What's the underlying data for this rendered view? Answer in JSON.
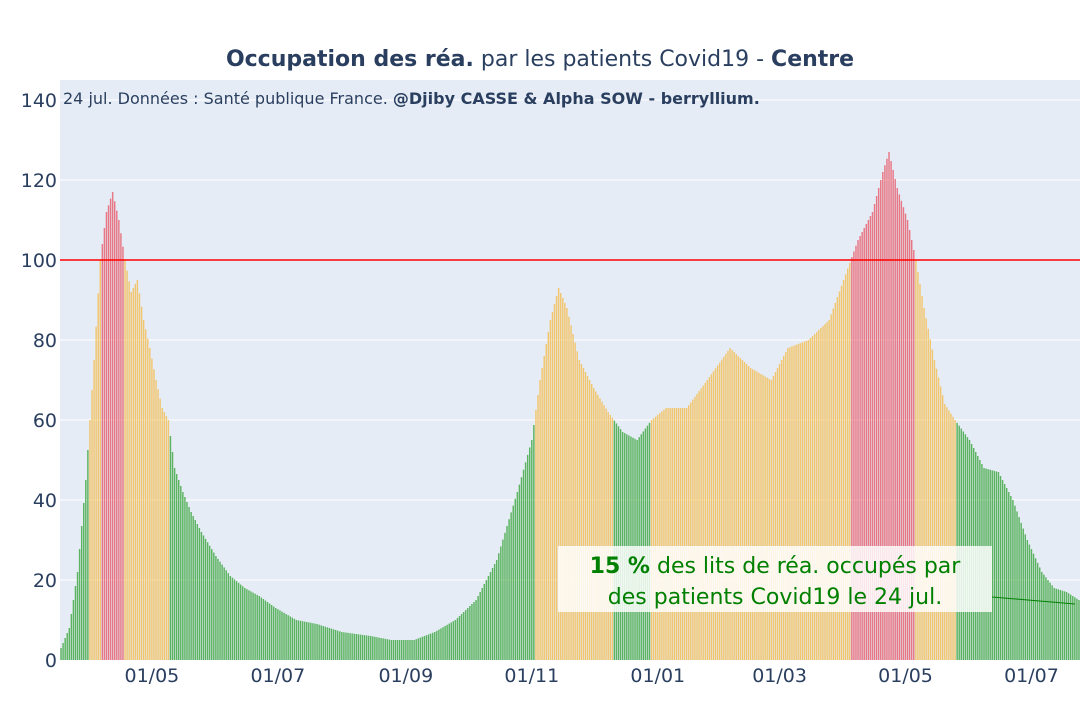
{
  "chart_data": {
    "type": "bar",
    "title_bold_1": "Occupation des réa.",
    "title_regular": " par les patients Covid19 - ",
    "title_bold_2": "Centre",
    "source_regular": "24 jul. Données : Santé publique France. ",
    "source_bold": "@Djiby CASSE & Alpha SOW - berryllium.",
    "ylim": [
      0,
      145
    ],
    "yticks": [
      0,
      20,
      40,
      60,
      80,
      100,
      120,
      140
    ],
    "xticks": [
      {
        "date": "2020-05-01",
        "label": "01/05"
      },
      {
        "date": "2020-07-01",
        "label": "01/07"
      },
      {
        "date": "2020-09-01",
        "label": "01/09"
      },
      {
        "date": "2020-11-01",
        "label": "01/11"
      },
      {
        "date": "2021-01-01",
        "label": "01/01"
      },
      {
        "date": "2021-03-01",
        "label": "01/03"
      },
      {
        "date": "2021-05-01",
        "label": "01/05"
      },
      {
        "date": "2021-07-01",
        "label": "01/07"
      }
    ],
    "x_start": "2020-03-18",
    "x_end": "2021-07-24",
    "threshold": 100,
    "colors": {
      "green": "#2ca02c",
      "orange": "#f5b942",
      "red": "#e8505f",
      "threshold_line": "#ff0000",
      "plot_bg": "#e5ecf6"
    },
    "color_rule": "green below 60, orange 60-100, red above 100",
    "series_points": [
      [
        "2020-03-18",
        3
      ],
      [
        "2020-03-22",
        8
      ],
      [
        "2020-03-26",
        22
      ],
      [
        "2020-03-30",
        45
      ],
      [
        "2020-04-03",
        75
      ],
      [
        "2020-04-06",
        100
      ],
      [
        "2020-04-09",
        112
      ],
      [
        "2020-04-12",
        117
      ],
      [
        "2020-04-15",
        110
      ],
      [
        "2020-04-18",
        100
      ],
      [
        "2020-04-21",
        92
      ],
      [
        "2020-04-24",
        95
      ],
      [
        "2020-04-27",
        85
      ],
      [
        "2020-04-30",
        78
      ],
      [
        "2020-05-03",
        70
      ],
      [
        "2020-05-06",
        63
      ],
      [
        "2020-05-09",
        60
      ],
      [
        "2020-05-12",
        48
      ],
      [
        "2020-05-16",
        42
      ],
      [
        "2020-05-20",
        37
      ],
      [
        "2020-05-25",
        32
      ],
      [
        "2020-06-01",
        26
      ],
      [
        "2020-06-08",
        21
      ],
      [
        "2020-06-15",
        18
      ],
      [
        "2020-06-22",
        16
      ],
      [
        "2020-06-30",
        13
      ],
      [
        "2020-07-10",
        10
      ],
      [
        "2020-07-20",
        9
      ],
      [
        "2020-08-01",
        7
      ],
      [
        "2020-08-15",
        6
      ],
      [
        "2020-08-25",
        5
      ],
      [
        "2020-09-05",
        5
      ],
      [
        "2020-09-15",
        7
      ],
      [
        "2020-09-25",
        10
      ],
      [
        "2020-10-05",
        15
      ],
      [
        "2020-10-15",
        25
      ],
      [
        "2020-10-25",
        42
      ],
      [
        "2020-11-01",
        55
      ],
      [
        "2020-11-05",
        70
      ],
      [
        "2020-11-10",
        85
      ],
      [
        "2020-11-14",
        93
      ],
      [
        "2020-11-18",
        88
      ],
      [
        "2020-11-24",
        75
      ],
      [
        "2020-12-01",
        68
      ],
      [
        "2020-12-08",
        62
      ],
      [
        "2020-12-15",
        57
      ],
      [
        "2020-12-22",
        55
      ],
      [
        "2020-12-29",
        60
      ],
      [
        "2021-01-05",
        63
      ],
      [
        "2021-01-15",
        63
      ],
      [
        "2021-01-25",
        70
      ],
      [
        "2021-02-05",
        78
      ],
      [
        "2021-02-15",
        73
      ],
      [
        "2021-02-25",
        70
      ],
      [
        "2021-03-05",
        78
      ],
      [
        "2021-03-15",
        80
      ],
      [
        "2021-03-25",
        85
      ],
      [
        "2021-04-01",
        95
      ],
      [
        "2021-04-08",
        105
      ],
      [
        "2021-04-15",
        112
      ],
      [
        "2021-04-20",
        122
      ],
      [
        "2021-04-23",
        127
      ],
      [
        "2021-04-27",
        118
      ],
      [
        "2021-05-02",
        110
      ],
      [
        "2021-05-06",
        100
      ],
      [
        "2021-05-10",
        88
      ],
      [
        "2021-05-15",
        75
      ],
      [
        "2021-05-20",
        64
      ],
      [
        "2021-05-25",
        60
      ],
      [
        "2021-06-01",
        55
      ],
      [
        "2021-06-08",
        48
      ],
      [
        "2021-06-15",
        47
      ],
      [
        "2021-06-22",
        40
      ],
      [
        "2021-06-29",
        30
      ],
      [
        "2021-07-06",
        22
      ],
      [
        "2021-07-12",
        18
      ],
      [
        "2021-07-18",
        17
      ],
      [
        "2021-07-24",
        15
      ]
    ],
    "annotation": {
      "percent": "15  %",
      "line1_rest": " des lits de réa. occupés par",
      "line2": "des patients Covid19 le 24 jul."
    }
  }
}
